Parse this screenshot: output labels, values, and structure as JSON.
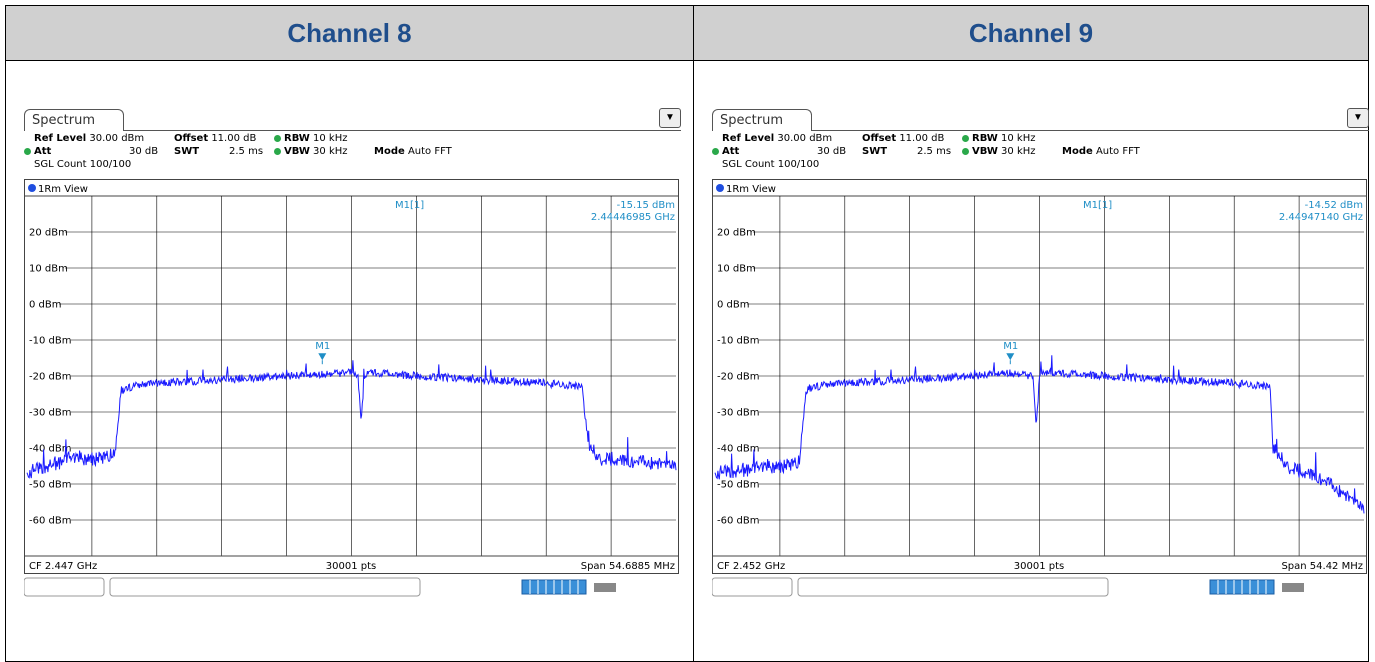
{
  "panels": [
    {
      "header": "Channel 8",
      "tab": "Spectrum",
      "info": {
        "ref_level_label": "Ref Level",
        "ref_level_value": "30.00 dBm",
        "offset_label": "Offset",
        "offset_value": "11.00 dB",
        "rbw_label": "RBW",
        "rbw_value": "10 kHz",
        "att_label": "Att",
        "att_value": "30 dB",
        "swt_label": "SWT",
        "swt_value": "2.5 ms",
        "vbw_label": "VBW",
        "vbw_value": "30 kHz",
        "mode_label": "Mode",
        "mode_value": "Auto FFT",
        "sgl": "SGL Count 100/100",
        "view": "1Rm View"
      },
      "marker": {
        "label": "M1[1]",
        "level": "-15.15 dBm",
        "freq": "2.44446985 GHz",
        "tag": "M1"
      },
      "footer": {
        "cf": "CF 2.447 GHz",
        "pts": "30001 pts",
        "span": "Span 54.6885 MHz"
      },
      "chart_data": {
        "type": "line",
        "ylim": [
          -70,
          30
        ],
        "y_ticks": [
          "20 dBm",
          "10 dBm",
          "0 dBm",
          "-10 dBm",
          "-20 dBm",
          "-30 dBm",
          "-40 dBm",
          "-50 dBm",
          "-60 dBm"
        ],
        "x_divisions": 10,
        "series": [
          {
            "x": [
              0,
              0.3,
              0.5,
              0.6,
              1.0,
              1.35,
              1.45,
              1.6,
              2,
              3,
              4,
              5,
              5.1,
              5.15,
              5.2,
              5.25,
              6,
              7,
              8,
              8.55,
              8.65,
              8.8,
              9.0,
              10
            ],
            "values": [
              -47,
              -45,
              -44,
              -43,
              -43,
              -42,
              -24,
              -23,
              -22,
              -21,
              -20,
              -19,
              -20,
              -33,
              -20,
              -19,
              -20,
              -21,
              -22,
              -23,
              -39,
              -43,
              -43,
              -45
            ]
          }
        ]
      }
    },
    {
      "header": "Channel 9",
      "tab": "Spectrum",
      "info": {
        "ref_level_label": "Ref Level",
        "ref_level_value": "30.00 dBm",
        "offset_label": "Offset",
        "offset_value": "11.00 dB",
        "rbw_label": "RBW",
        "rbw_value": "10 kHz",
        "att_label": "Att",
        "att_value": "30 dB",
        "swt_label": "SWT",
        "swt_value": "2.5 ms",
        "vbw_label": "VBW",
        "vbw_value": "30 kHz",
        "mode_label": "Mode",
        "mode_value": "Auto FFT",
        "sgl": "SGL Count 100/100",
        "view": "1Rm View"
      },
      "marker": {
        "label": "M1[1]",
        "level": "-14.52 dBm",
        "freq": "2.44947140 GHz",
        "tag": "M1"
      },
      "footer": {
        "cf": "CF 2.452 GHz",
        "pts": "30001 pts",
        "span": "Span 54.42 MHz"
      },
      "chart_data": {
        "type": "line",
        "ylim": [
          -70,
          30
        ],
        "y_ticks": [
          "20 dBm",
          "10 dBm",
          "0 dBm",
          "-10 dBm",
          "-20 dBm",
          "-30 dBm",
          "-40 dBm",
          "-50 dBm",
          "-60 dBm"
        ],
        "x_divisions": 10,
        "series": [
          {
            "x": [
              0,
              0.5,
              1.0,
              1.3,
              1.4,
              1.5,
              2,
              3,
              4,
              4.5,
              4.9,
              4.95,
              5.0,
              5.05,
              6,
              7,
              8,
              8.55,
              8.6,
              8.8,
              9.3,
              9.7,
              10
            ],
            "values": [
              -47,
              -46,
              -45,
              -44,
              -24,
              -23,
              -22,
              -21,
              -20,
              -19,
              -20,
              -35,
              -20,
              -19,
              -20,
              -21,
              -22,
              -23,
              -40,
              -45,
              -48,
              -53,
              -57
            ]
          }
        ]
      }
    }
  ]
}
